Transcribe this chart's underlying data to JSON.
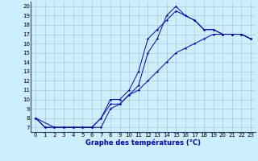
{
  "title": "Graphe des températures (°C)",
  "bg_color": "#cceeff",
  "grid_color": "#aacccc",
  "line_color": "#0000cc",
  "xlim": [
    -0.5,
    23.5
  ],
  "ylim": [
    6.5,
    20.5
  ],
  "xticks": [
    0,
    1,
    2,
    3,
    4,
    5,
    6,
    7,
    8,
    9,
    10,
    11,
    12,
    13,
    14,
    15,
    16,
    17,
    18,
    19,
    20,
    21,
    22,
    23
  ],
  "yticks": [
    7,
    8,
    9,
    10,
    11,
    12,
    13,
    14,
    15,
    16,
    17,
    18,
    19,
    20
  ],
  "line1_x": [
    0,
    1,
    2,
    3,
    4,
    5,
    6,
    7,
    8,
    9,
    10,
    11,
    12,
    13,
    14,
    15,
    16,
    17,
    18,
    19,
    20,
    21,
    22,
    23
  ],
  "line1_y": [
    8,
    7,
    7,
    7,
    7,
    7,
    7,
    8,
    10,
    10,
    11,
    13,
    16.5,
    17.5,
    18.5,
    19.5,
    19,
    18.5,
    17.5,
    17.5,
    17,
    17,
    17,
    16.5
  ],
  "line2_x": [
    0,
    1,
    2,
    3,
    4,
    5,
    6,
    7,
    8,
    9,
    10,
    11,
    12,
    13,
    14,
    15,
    16,
    17,
    18,
    19,
    20,
    21,
    22,
    23
  ],
  "line2_y": [
    8,
    7,
    7,
    7,
    7,
    7,
    7,
    7,
    9,
    9.5,
    10.5,
    11,
    12,
    13,
    14,
    15,
    15.5,
    16,
    16.5,
    17,
    17,
    17,
    17,
    16.5
  ],
  "line3_x": [
    0,
    2,
    3,
    4,
    5,
    6,
    7,
    8,
    9,
    10,
    11,
    12,
    13,
    14,
    15,
    16,
    17,
    18,
    19,
    20,
    21,
    22,
    23
  ],
  "line3_y": [
    8,
    7,
    7,
    7,
    7,
    7,
    8,
    9.5,
    9.5,
    10.5,
    11.5,
    15,
    16.5,
    19,
    20,
    19,
    18.5,
    17.5,
    17.5,
    17,
    17,
    17,
    16.5
  ]
}
